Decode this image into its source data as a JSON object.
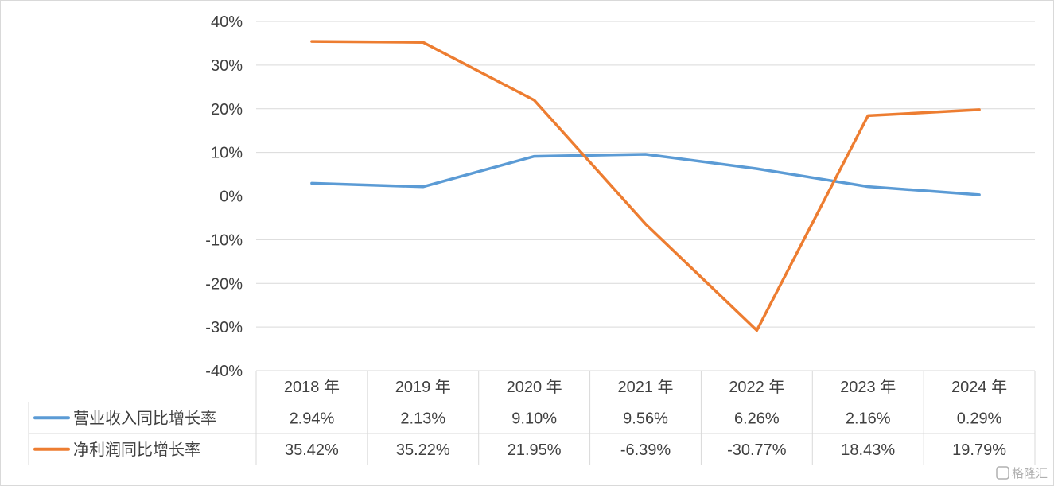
{
  "chart_data": {
    "type": "line",
    "categories": [
      "2018 年",
      "2019 年",
      "2020 年",
      "2021 年",
      "2022 年",
      "2023 年",
      "2024 年"
    ],
    "ylim": [
      -40,
      40
    ],
    "yticks": [
      40,
      30,
      20,
      10,
      0,
      -10,
      -20,
      -30,
      -40
    ],
    "ytick_labels": [
      "40%",
      "30%",
      "20%",
      "10%",
      "0%",
      "-10%",
      "-20%",
      "-30%",
      "-40%"
    ],
    "grid": true,
    "legend": "data-table-left",
    "series": [
      {
        "name": "营业收入同比增长率",
        "color": "#5b9bd5",
        "values": [
          2.94,
          2.13,
          9.1,
          9.56,
          6.26,
          2.16,
          0.29
        ],
        "labels": [
          "2.94%",
          "2.13%",
          "9.10%",
          "9.56%",
          "6.26%",
          "2.16%",
          "0.29%"
        ]
      },
      {
        "name": "净利润同比增长率",
        "color": "#ed7d31",
        "values": [
          35.42,
          35.22,
          21.95,
          -6.39,
          -30.77,
          18.43,
          19.79
        ],
        "labels": [
          "35.42%",
          "35.22%",
          "21.95%",
          "-6.39%",
          "-30.77%",
          "18.43%",
          "19.79%"
        ]
      }
    ],
    "watermark": "格隆汇"
  }
}
